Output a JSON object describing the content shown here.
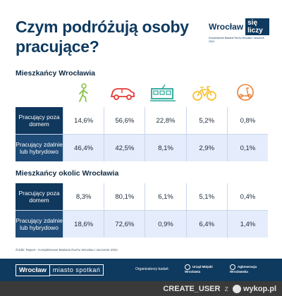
{
  "title": "Czym podróżują osoby pracujące?",
  "brand": {
    "city": "Wrocław",
    "tag": "się liczy",
    "subtitle": "Kompleksowe Badanie Ruchu Wrocław i otoczenie 2024"
  },
  "section1_title": "Mieszkańcy Wrocławia",
  "section2_title": "Mieszkańcy okolic Wrocławia",
  "modes": [
    {
      "icon": "walking-person-icon",
      "color": "#8bc34a"
    },
    {
      "icon": "car-icon",
      "color": "#e53935"
    },
    {
      "icon": "tram-icon",
      "color": "#26a69a"
    },
    {
      "icon": "bicycle-icon",
      "color": "#fbc02d"
    },
    {
      "icon": "scooter-icon",
      "color": "#e8833a"
    }
  ],
  "table1": [
    {
      "label": "Pracujący poza domem",
      "values": [
        "14,6%",
        "56,6%",
        "22,8%",
        "5,2%",
        "0,8%"
      ]
    },
    {
      "label": "Pracujący zdalnie lub hybrydowo",
      "values": [
        "46,4%",
        "42,5%",
        "8,1%",
        "2,9%",
        "0,1%"
      ]
    }
  ],
  "table2": [
    {
      "label": "Pracujący poza domem",
      "values": [
        "8,3%",
        "80,1%",
        "6,1%",
        "5,1%",
        "0,4%"
      ]
    },
    {
      "label": "Pracujący zdalnie lub hybrydowo",
      "values": [
        "18,6%",
        "72,6%",
        "0,9%",
        "6,4%",
        "1,4%"
      ]
    }
  ],
  "source": "źródło: Raport - Kompleksowe Badania Ruchu Wrocław i otoczenie 2024",
  "footer": {
    "city": "Wrocław",
    "slogan": "miasto spotkań",
    "organizers": "Organizatorzy badań:",
    "logo1": "Urząd Miejski Wrocławia",
    "logo2": "Aglomeracja Wrocławska"
  },
  "watermark": {
    "user": "CREATE_USER",
    "letter": "z",
    "site": "wykop.pl"
  },
  "colors": {
    "navy": "#10375c",
    "row_alt": "#e5ecfb",
    "title": "#0f3a5f"
  }
}
